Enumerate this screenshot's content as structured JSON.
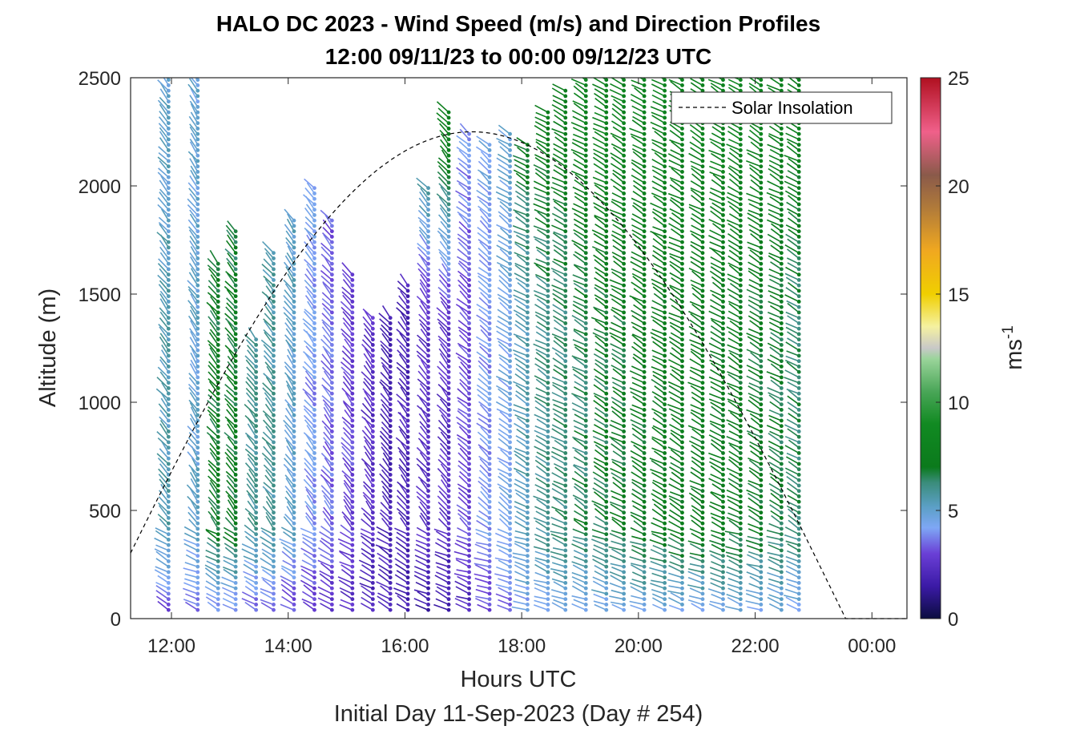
{
  "chart_data": {
    "type": "scatter",
    "subtype": "wind-barb-profile",
    "title": "HALO DC 2023 - Wind Speed (m/s) and Direction Profiles",
    "subtitle": "12:00 09/11/23 to 00:00 09/12/23  UTC",
    "xlabel": "Hours UTC",
    "xlabel_note": "Initial Day 11-Sep-2023 (Day # 254)",
    "ylabel": "Altitude (m)",
    "x_ticks": [
      "12:00",
      "14:00",
      "16:00",
      "18:00",
      "20:00",
      "22:00",
      "00:00"
    ],
    "x_tick_hours": [
      12,
      14,
      16,
      18,
      20,
      22,
      24
    ],
    "xlim_hours": [
      11.3,
      24.6
    ],
    "y_ticks": [
      "0",
      "500",
      "1000",
      "1500",
      "2000",
      "2500"
    ],
    "y_tick_values": [
      0,
      500,
      1000,
      1500,
      2000,
      2500
    ],
    "ylim": [
      0,
      2500
    ],
    "colorbar": {
      "label": "ms",
      "label_superscript": "-1",
      "range": [
        0,
        25
      ],
      "tick_values": [
        0,
        5,
        10,
        15,
        20,
        25
      ],
      "tick_labels": [
        "0",
        "5",
        "10",
        "15",
        "20",
        "25"
      ],
      "stops": [
        {
          "v": 0,
          "c": "#0b0d40"
        },
        {
          "v": 1.5,
          "c": "#3b1aa6"
        },
        {
          "v": 3,
          "c": "#6a3fd6"
        },
        {
          "v": 4.2,
          "c": "#7ea7f5"
        },
        {
          "v": 5.2,
          "c": "#5a9fc4"
        },
        {
          "v": 6.3,
          "c": "#3a8c7a"
        },
        {
          "v": 7,
          "c": "#0b7a1c"
        },
        {
          "v": 9,
          "c": "#118a22"
        },
        {
          "v": 10.5,
          "c": "#4aa658"
        },
        {
          "v": 12,
          "c": "#9ad49a"
        },
        {
          "v": 12.5,
          "c": "#c8c8c8"
        },
        {
          "v": 13.5,
          "c": "#f5f1a0"
        },
        {
          "v": 15,
          "c": "#f0cf00"
        },
        {
          "v": 17,
          "c": "#f0a820"
        },
        {
          "v": 19,
          "c": "#b07a3a"
        },
        {
          "v": 20.5,
          "c": "#8a5a4a"
        },
        {
          "v": 22.5,
          "c": "#f0608a"
        },
        {
          "v": 25,
          "c": "#b01020"
        }
      ]
    },
    "legend": {
      "entries": [
        "Solar Insolation"
      ],
      "placement": "top-right"
    },
    "insolation": {
      "peak_hour": 17.15,
      "peak_altitude": 2250,
      "half_width_hours": 6.4,
      "zero_after_hour": 24.6
    },
    "profiles": [
      {
        "hour": 11.95,
        "top": 2500,
        "s_low": 3.0,
        "s_mid": 5.5,
        "s_up": 5.0,
        "d_low": 300,
        "d_up": 320
      },
      {
        "hour": 12.45,
        "top": 2500,
        "s_low": 3.2,
        "s_mid": 5.0,
        "s_up": 4.8,
        "d_low": 295,
        "d_up": 325
      },
      {
        "hour": 12.8,
        "top": 1650,
        "s_low": 3.5,
        "s_mid": 7.0,
        "s_up": 7.5,
        "d_low": 300,
        "d_up": 320
      },
      {
        "hour": 13.1,
        "top": 1800,
        "s_low": 3.5,
        "s_mid": 7.0,
        "s_up": 6.0,
        "d_low": 300,
        "d_up": 320
      },
      {
        "hour": 13.45,
        "top": 1300,
        "s_low": 3.0,
        "s_mid": 6.0,
        "s_up": 6.5,
        "d_low": 300,
        "d_up": 320
      },
      {
        "hour": 13.75,
        "top": 1700,
        "s_low": 3.0,
        "s_mid": 5.8,
        "s_up": 5.5,
        "d_low": 300,
        "d_up": 320
      },
      {
        "hour": 14.1,
        "top": 1850,
        "s_low": 2.8,
        "s_mid": 5.0,
        "s_up": 5.5,
        "d_low": 300,
        "d_up": 325
      },
      {
        "hour": 14.45,
        "top": 2000,
        "s_low": 2.5,
        "s_mid": 4.0,
        "s_up": 4.5,
        "d_low": 300,
        "d_up": 320
      },
      {
        "hour": 14.75,
        "top": 1850,
        "s_low": 2.5,
        "s_mid": 3.5,
        "s_up": 3.0,
        "d_low": 300,
        "d_up": 320
      },
      {
        "hour": 15.1,
        "top": 1600,
        "s_low": 2.5,
        "s_mid": 3.0,
        "s_up": 3.0,
        "d_low": 300,
        "d_up": 320
      },
      {
        "hour": 15.45,
        "top": 1400,
        "s_low": 2.0,
        "s_mid": 2.5,
        "s_up": 2.5,
        "d_low": 300,
        "d_up": 320
      },
      {
        "hour": 15.75,
        "top": 1400,
        "s_low": 2.0,
        "s_mid": 2.0,
        "s_up": 1.5,
        "d_low": 300,
        "d_up": 320
      },
      {
        "hour": 16.05,
        "top": 1550,
        "s_low": 1.8,
        "s_mid": 2.0,
        "s_up": 2.5,
        "d_low": 300,
        "d_up": 320
      },
      {
        "hour": 16.4,
        "top": 2000,
        "s_low": 1.5,
        "s_mid": 2.5,
        "s_up": 7.0,
        "d_low": 295,
        "d_up": 320
      },
      {
        "hour": 16.75,
        "top": 2350,
        "s_low": 1.5,
        "s_mid": 2.5,
        "s_up": 8.0,
        "d_low": 295,
        "d_up": 320
      },
      {
        "hour": 17.1,
        "top": 2250,
        "s_low": 2.0,
        "s_mid": 3.0,
        "s_up": 4.0,
        "d_low": 290,
        "d_up": 310
      },
      {
        "hour": 17.45,
        "top": 2200,
        "s_low": 3.0,
        "s_mid": 4.0,
        "s_up": 4.5,
        "d_low": 290,
        "d_up": 310
      },
      {
        "hour": 17.8,
        "top": 2250,
        "s_low": 3.5,
        "s_mid": 4.5,
        "s_up": 5.0,
        "d_low": 290,
        "d_up": 305
      },
      {
        "hour": 18.1,
        "top": 2200,
        "s_low": 4.0,
        "s_mid": 5.5,
        "s_up": 7.0,
        "d_low": 290,
        "d_up": 300
      },
      {
        "hour": 18.45,
        "top": 2350,
        "s_low": 4.0,
        "s_mid": 6.0,
        "s_up": 7.5,
        "d_low": 290,
        "d_up": 300
      },
      {
        "hour": 18.75,
        "top": 2450,
        "s_low": 4.2,
        "s_mid": 6.3,
        "s_up": 7.5,
        "d_low": 290,
        "d_up": 300
      },
      {
        "hour": 19.1,
        "top": 2500,
        "s_low": 4.2,
        "s_mid": 6.5,
        "s_up": 8.0,
        "d_low": 290,
        "d_up": 300
      },
      {
        "hour": 19.45,
        "top": 2500,
        "s_low": 4.2,
        "s_mid": 6.8,
        "s_up": 8.0,
        "d_low": 290,
        "d_up": 300
      },
      {
        "hour": 19.75,
        "top": 2500,
        "s_low": 4.2,
        "s_mid": 7.0,
        "s_up": 8.0,
        "d_low": 290,
        "d_up": 300
      },
      {
        "hour": 20.1,
        "top": 2500,
        "s_low": 4.3,
        "s_mid": 7.2,
        "s_up": 8.0,
        "d_low": 290,
        "d_up": 300
      },
      {
        "hour": 20.45,
        "top": 2500,
        "s_low": 4.3,
        "s_mid": 7.3,
        "s_up": 8.0,
        "d_low": 290,
        "d_up": 300
      },
      {
        "hour": 20.75,
        "top": 2500,
        "s_low": 4.3,
        "s_mid": 7.3,
        "s_up": 8.0,
        "d_low": 290,
        "d_up": 300
      },
      {
        "hour": 21.1,
        "top": 2500,
        "s_low": 4.3,
        "s_mid": 7.3,
        "s_up": 8.0,
        "d_low": 290,
        "d_up": 300
      },
      {
        "hour": 21.45,
        "top": 2500,
        "s_low": 4.3,
        "s_mid": 7.3,
        "s_up": 8.0,
        "d_low": 290,
        "d_up": 300
      },
      {
        "hour": 21.75,
        "top": 2500,
        "s_low": 4.3,
        "s_mid": 7.2,
        "s_up": 8.0,
        "d_low": 290,
        "d_up": 300
      },
      {
        "hour": 22.1,
        "top": 2500,
        "s_low": 4.3,
        "s_mid": 7.0,
        "s_up": 8.0,
        "d_low": 290,
        "d_up": 300
      },
      {
        "hour": 22.45,
        "top": 2500,
        "s_low": 4.3,
        "s_mid": 6.8,
        "s_up": 7.8,
        "d_low": 290,
        "d_up": 300
      },
      {
        "hour": 22.75,
        "top": 2500,
        "s_low": 4.2,
        "s_mid": 6.5,
        "s_up": 7.5,
        "d_low": 290,
        "d_up": 300
      }
    ]
  }
}
